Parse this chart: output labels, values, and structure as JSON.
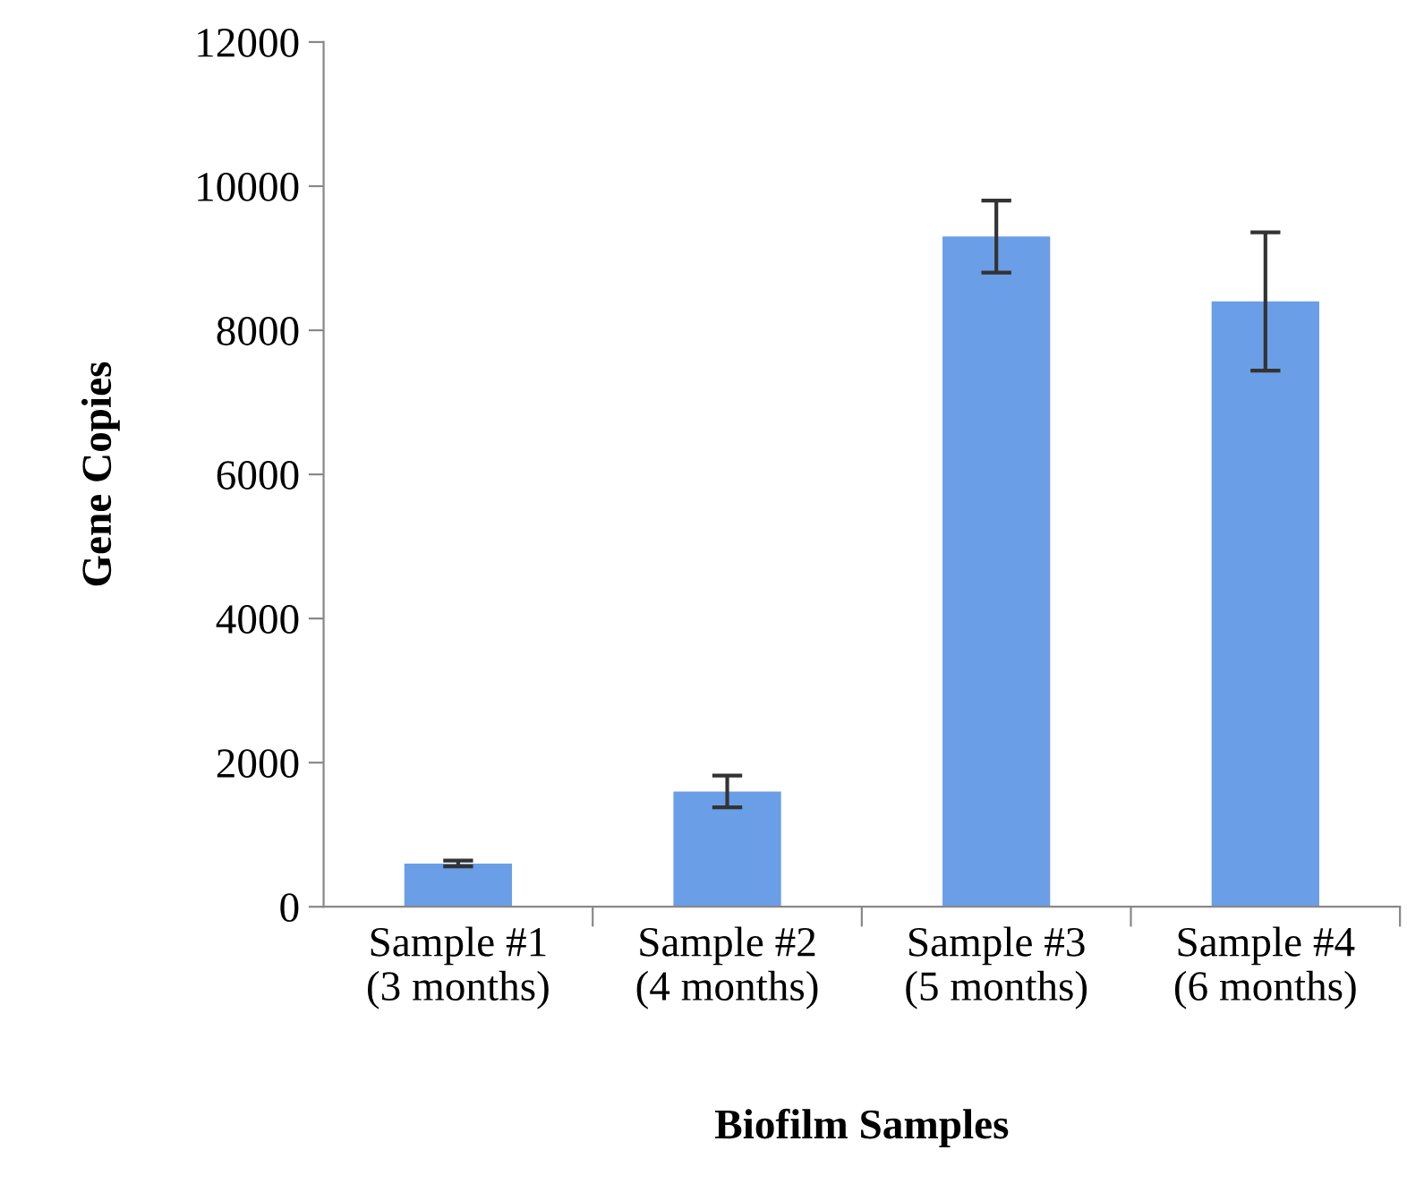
{
  "chart_data": {
    "type": "bar",
    "xlabel": "Biofilm Samples",
    "ylabel": "Gene Copies",
    "categories": [
      "Sample #1\n(3 months)",
      "Sample #2\n(4 months)",
      "Sample #3\n(5 months)",
      "Sample #4\n(6 months)"
    ],
    "series": [
      {
        "color": "#6a9ee6",
        "values": [
          600,
          1600,
          9300,
          8400
        ],
        "errors": [
          40,
          220,
          500,
          960
        ]
      }
    ],
    "ylim": [
      0,
      12000
    ],
    "yticks": [
      0,
      2000,
      4000,
      6000,
      8000,
      10000,
      12000
    ],
    "grid": false,
    "legend": false
  }
}
